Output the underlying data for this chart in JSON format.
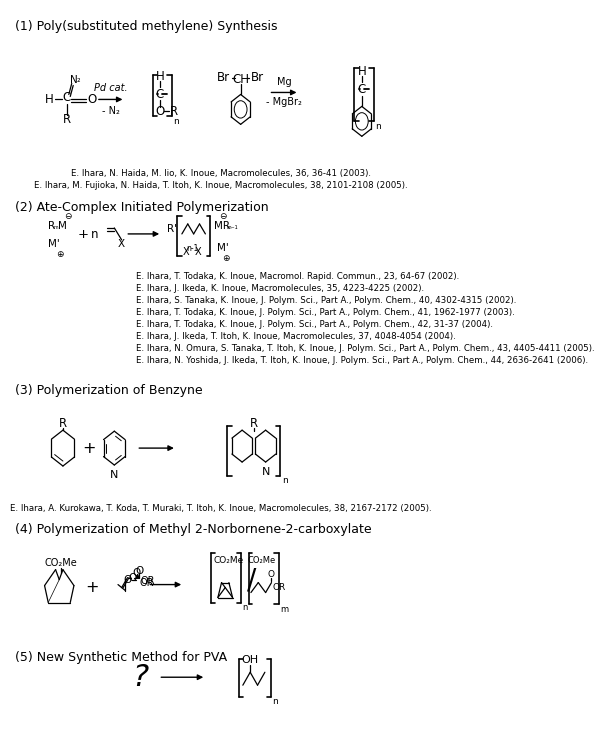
{
  "bg_color": "#ffffff",
  "sec1": "(1) Poly(substituted methylene) Synthesis",
  "sec2": "(2) Ate-Complex Initiated Polymerization",
  "sec3": "(3) Polymerization of Benzyne",
  "sec4": "(4) Polymerization of Methyl 2-Norbornene-2-carboxylate",
  "sec5": "(5) New Synthetic Method for PVA",
  "ref1a": "E. Ihara, N. Haida, M. Iio, K. Inoue, ",
  "ref1a_it": "Macromolecules,",
  "ref1a_tail": " 36, 36-41 (2003).",
  "ref1b": "E. Ihara, M. Fujioka, N. Haida, T. Itoh, K. Inoue, ",
  "ref1b_it": "Macromolecules,",
  "ref1b_tail": " 38, 2101-2108 (2005).",
  "ref2a": "E. Ihara, T. Todaka, K. Inoue, ",
  "ref2a_it": "Macromol. Rapid. Commun.,",
  "ref2a_tail": " 23, 64-67 (2002).",
  "ref2b": "E. Ihara, J. Ikeda, K. Inoue, ",
  "ref2b_it": "Macromolecules,",
  "ref2b_tail": " 35, 4223-4225 (2002).",
  "ref2c": "E. Ihara, S. Tanaka, K. Inoue, ",
  "ref2c_it": "J. Polym. Sci., Part A., Polym. Chem.,",
  "ref2c_tail": " 40, 4302-4315 (2002).",
  "ref2d": "E. Ihara, T. Todaka, K. Inoue, ",
  "ref2d_it": "J. Polym. Sci., Part A., Polym. Chem.,",
  "ref2d_tail": " 41, 1962-1977 (2003).",
  "ref2e": "E. Ihara, T. Todaka, K. Inoue, ",
  "ref2e_it": "J. Polym. Sci., Part A., Polym. Chem.,",
  "ref2e_tail": " 42, 31-37 (2004).",
  "ref2f": "E. Ihara, J. Ikeda, T. Itoh, K. Inoue, ",
  "ref2f_it": "Macromolecules,",
  "ref2f_tail": " 37, 4048-4054 (2004).",
  "ref2g": "E. Ihara, N. Omura, S. Tanaka, T. Itoh, K. Inoue, ",
  "ref2g_it": "J. Polym. Sci., Part A., Polym. Chem.,",
  "ref2g_tail": " 43, 4405-4411 (2005).",
  "ref2h": "E. Ihara, N. Yoshida, J. Ikeda, T. Itoh, K. Inoue, ",
  "ref2h_it": "J. Polym. Sci., Part A., Polym. Chem.,",
  "ref2h_tail": " 44, 2636-2641 (2006).",
  "ref3": "E. Ihara, A. Kurokawa, T. Koda, T. Muraki, T. Itoh, K. Inoue, ",
  "ref3_it": "Macromolecules,",
  "ref3_tail": " 38, 2167-2172 (2005).",
  "fs_sec": 9,
  "fs_ref": 6.2,
  "fs_chem": 8.5
}
